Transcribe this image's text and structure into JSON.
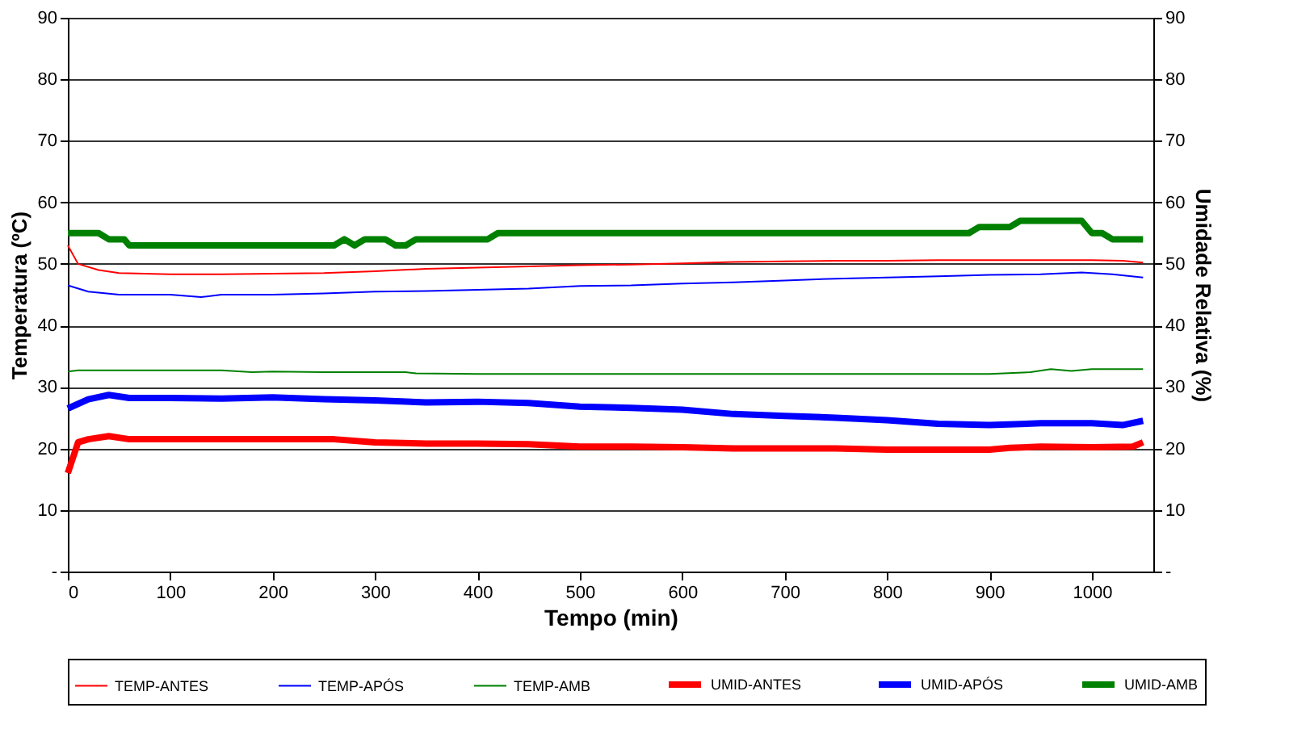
{
  "chart_data": {
    "type": "line",
    "xlabel": "Tempo  (min)",
    "ylabel": "Temperatura (ºC)",
    "y2label": "Umidade Relativa  (%)",
    "xlim": [
      0,
      1060
    ],
    "xticks": [
      0,
      100,
      200,
      300,
      400,
      500,
      600,
      700,
      800,
      900,
      1000
    ],
    "ylim": [
      0,
      90
    ],
    "yticks": [
      {
        "value": 0,
        "label": "-"
      },
      10,
      20,
      30,
      40,
      50,
      60,
      70,
      80,
      90
    ],
    "y2lim": [
      0,
      90
    ],
    "y2ticks": [
      {
        "value": 0,
        "label": "-"
      },
      10,
      20,
      30,
      40,
      50,
      60,
      70,
      80,
      90
    ],
    "grid": "y",
    "legend": "bottom",
    "marker": "none",
    "line_style": "solid",
    "series": [
      {
        "name": "TEMP-ANTES",
        "color": "#ff0000",
        "x": [
          0,
          10,
          30,
          50,
          100,
          150,
          200,
          250,
          300,
          350,
          400,
          450,
          500,
          550,
          600,
          650,
          700,
          750,
          800,
          850,
          900,
          950,
          1000,
          1030,
          1050
        ],
        "values": [
          53,
          50,
          49,
          48.5,
          48.3,
          48.3,
          48.4,
          48.5,
          48.8,
          49.2,
          49.4,
          49.6,
          49.8,
          49.9,
          50.1,
          50.3,
          50.4,
          50.5,
          50.5,
          50.6,
          50.6,
          50.6,
          50.6,
          50.5,
          50.2
        ]
      },
      {
        "name": "TEMP-APÓS",
        "color": "#0000ff",
        "x": [
          0,
          20,
          50,
          100,
          130,
          150,
          200,
          250,
          300,
          350,
          400,
          450,
          500,
          550,
          600,
          650,
          700,
          750,
          800,
          850,
          900,
          950,
          990,
          1020,
          1050
        ],
        "values": [
          46.5,
          45.5,
          45,
          45,
          44.6,
          45,
          45,
          45.2,
          45.5,
          45.6,
          45.8,
          46,
          46.4,
          46.5,
          46.8,
          47,
          47.3,
          47.6,
          47.8,
          48,
          48.2,
          48.3,
          48.6,
          48.3,
          47.8
        ]
      },
      {
        "name": "TEMP-AMB",
        "color": "#008000",
        "x": [
          0,
          10,
          50,
          100,
          150,
          180,
          200,
          250,
          300,
          330,
          340,
          400,
          500,
          600,
          700,
          800,
          880,
          900,
          940,
          960,
          980,
          1000,
          1050
        ],
        "values": [
          32.5,
          32.7,
          32.7,
          32.7,
          32.7,
          32.4,
          32.5,
          32.4,
          32.4,
          32.4,
          32.2,
          32.1,
          32.1,
          32.1,
          32.1,
          32.1,
          32.1,
          32.1,
          32.4,
          32.9,
          32.6,
          32.9,
          32.9
        ]
      },
      {
        "name": "UMID-ANTES",
        "color": "#ff0000",
        "axis": "y2",
        "x": [
          0,
          10,
          20,
          40,
          60,
          100,
          150,
          200,
          260,
          300,
          350,
          400,
          450,
          500,
          550,
          600,
          650,
          700,
          750,
          800,
          850,
          900,
          920,
          950,
          1000,
          1040,
          1050
        ],
        "values": [
          16,
          21,
          21.5,
          22,
          21.5,
          21.5,
          21.5,
          21.5,
          21.5,
          21,
          20.8,
          20.8,
          20.7,
          20.3,
          20.3,
          20.2,
          20,
          20,
          20,
          19.8,
          19.8,
          19.8,
          20.1,
          20.3,
          20.2,
          20.3,
          21
        ]
      },
      {
        "name": "UMID-APÓS",
        "color": "#0000ff",
        "axis": "y2",
        "x": [
          0,
          20,
          40,
          60,
          100,
          150,
          200,
          250,
          300,
          350,
          400,
          450,
          500,
          550,
          600,
          650,
          700,
          750,
          800,
          850,
          900,
          950,
          1000,
          1030,
          1050
        ],
        "values": [
          26.5,
          28,
          28.7,
          28.2,
          28.2,
          28.1,
          28.3,
          28,
          27.8,
          27.5,
          27.6,
          27.4,
          26.8,
          26.6,
          26.3,
          25.6,
          25.3,
          25,
          24.6,
          24,
          23.8,
          24.1,
          24.1,
          23.8,
          24.5
        ]
      },
      {
        "name": "UMID-AMB",
        "color": "#008000",
        "axis": "y2",
        "x": [
          0,
          30,
          40,
          55,
          60,
          260,
          270,
          280,
          290,
          310,
          320,
          330,
          340,
          410,
          420,
          880,
          890,
          920,
          930,
          990,
          1000,
          1010,
          1020,
          1050
        ],
        "values": [
          55,
          55,
          54,
          54,
          53,
          53,
          54,
          53,
          54,
          54,
          53,
          53,
          54,
          54,
          55,
          55,
          56,
          56,
          57,
          57,
          55,
          55,
          54,
          54
        ]
      }
    ]
  }
}
